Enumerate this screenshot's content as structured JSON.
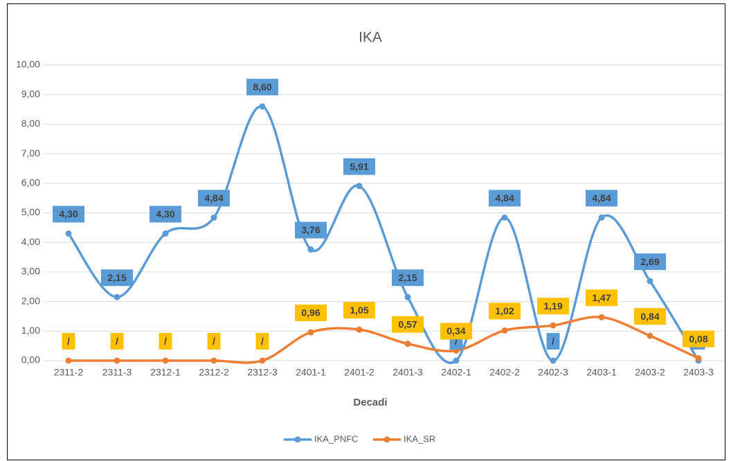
{
  "chart_data": {
    "type": "line",
    "title": "IKA",
    "x_label": "Decadi",
    "categories": [
      "2311-2",
      "2311-3",
      "2312-1",
      "2312-2",
      "2312-3",
      "2401-1",
      "2401-2",
      "2401-3",
      "2402-1",
      "2402-2",
      "2402-3",
      "2403-1",
      "2403-2",
      "2403-3"
    ],
    "series": [
      {
        "name": "IKA_PNFC",
        "color": "#5b9bd5",
        "label_color": "#5b9bd5",
        "values": [
          4.3,
          2.15,
          4.3,
          4.84,
          8.6,
          3.76,
          5.91,
          2.15,
          0,
          4.84,
          0,
          4.84,
          2.69,
          0
        ],
        "value_labels": [
          "4,30",
          "2,15",
          "4,30",
          "4,84",
          "8,60",
          "3,76",
          "5,91",
          "2,15",
          "/",
          "4,84",
          "/",
          "4,84",
          "2,69",
          "/"
        ]
      },
      {
        "name": "IKA_SR",
        "color": "#ed7d31",
        "label_color": "#ffc000",
        "values": [
          0,
          0,
          0,
          0,
          0,
          0.96,
          1.05,
          0.57,
          0.34,
          1.02,
          1.19,
          1.47,
          0.84,
          0.08
        ],
        "value_labels": [
          "/",
          "/",
          "/",
          "/",
          "/",
          "0,96",
          "1,05",
          "0,57",
          "0,34",
          "1,02",
          "1,19",
          "1,47",
          "0,84",
          "0,08"
        ]
      }
    ],
    "ylim": [
      0,
      10
    ],
    "yticks": [
      {
        "value": 0,
        "label": "0,00"
      },
      {
        "value": 1,
        "label": "1,00"
      },
      {
        "value": 2,
        "label": "2,00"
      },
      {
        "value": 3,
        "label": "3,00"
      },
      {
        "value": 4,
        "label": "4,00"
      },
      {
        "value": 5,
        "label": "5,00"
      },
      {
        "value": 6,
        "label": "6,00"
      },
      {
        "value": 7,
        "label": "7,00"
      },
      {
        "value": 8,
        "label": "8,00"
      },
      {
        "value": 9,
        "label": "9,00"
      },
      {
        "value": 10,
        "label": "10,00"
      }
    ],
    "grid": true,
    "smooth": true,
    "legend": "bottom"
  }
}
